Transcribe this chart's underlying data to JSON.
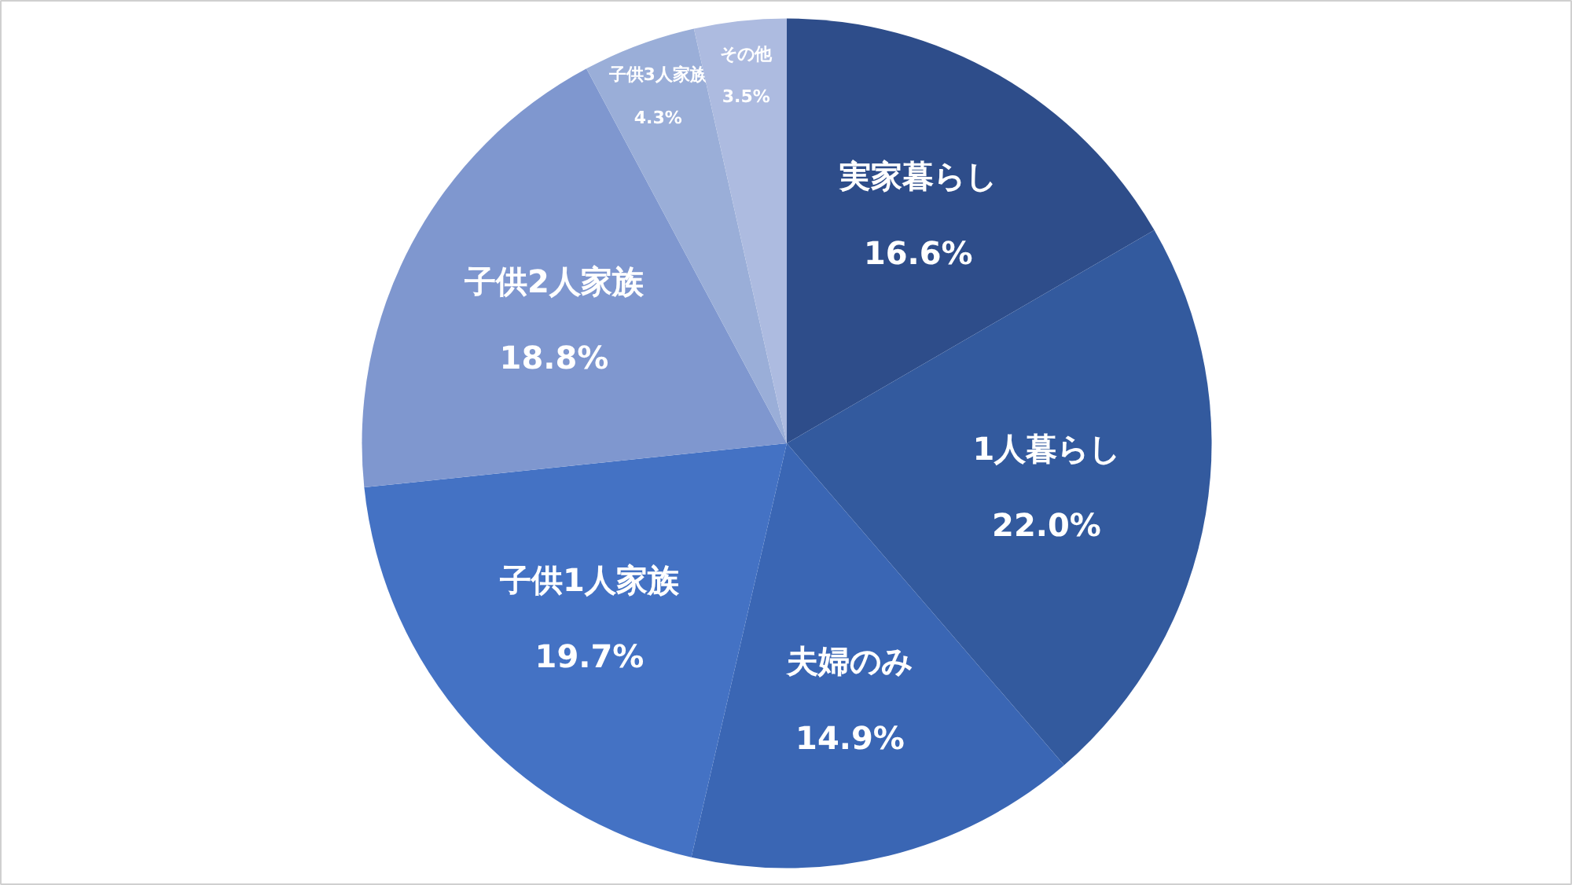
{
  "chart_data": {
    "type": "pie",
    "categories": [
      "実家暮らし",
      "1人暮らし",
      "夫婦のみ",
      "子供1人家族",
      "子供2人家族",
      "子供3人家族",
      "その他"
    ],
    "values": [
      16.6,
      22.0,
      14.9,
      19.7,
      18.8,
      4.3,
      3.5
    ],
    "value_labels": [
      "16.6%",
      "22.0%",
      "14.9%",
      "19.7%",
      "18.8%",
      "4.3%",
      "3.5%"
    ],
    "colors": [
      "#2e4d8a",
      "#335a9e",
      "#3a66b4",
      "#4472c4",
      "#7f97cf",
      "#9aaed8",
      "#adbbe0"
    ]
  }
}
